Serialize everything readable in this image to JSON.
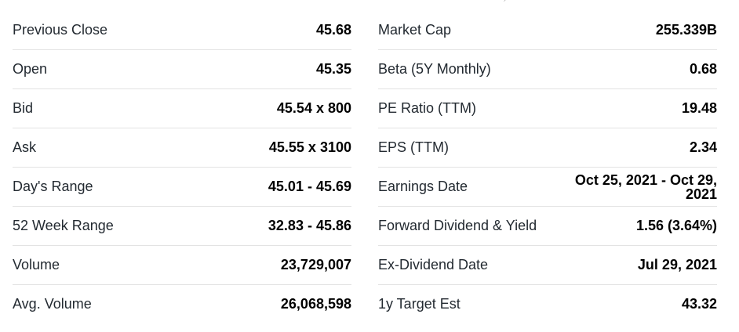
{
  "left_column": [
    {
      "label": "Previous Close",
      "value": "45.68"
    },
    {
      "label": "Open",
      "value": "45.35"
    },
    {
      "label": "Bid",
      "value": "45.54 x 800"
    },
    {
      "label": "Ask",
      "value": "45.55 x 3100"
    },
    {
      "label": "Day's Range",
      "value": "45.01 - 45.69"
    },
    {
      "label": "52 Week Range",
      "value": "32.83 - 45.86"
    },
    {
      "label": "Volume",
      "value": "23,729,007"
    },
    {
      "label": "Avg. Volume",
      "value": "26,068,598"
    }
  ],
  "right_column": [
    {
      "label": "Market Cap",
      "value": "255.339B"
    },
    {
      "label": "Beta (5Y Monthly)",
      "value": "0.68"
    },
    {
      "label": "PE Ratio (TTM)",
      "value": "19.48"
    },
    {
      "label": "EPS (TTM)",
      "value": "2.34"
    },
    {
      "label": "Earnings Date",
      "value": "Oct 25, 2021 - Oct 29, 2021"
    },
    {
      "label": "Forward Dividend & Yield",
      "value": "1.56 (3.64%)"
    },
    {
      "label": "Ex-Dividend Date",
      "value": "Jul 29, 2021"
    },
    {
      "label": "1y Target Est",
      "value": "43.32"
    }
  ]
}
